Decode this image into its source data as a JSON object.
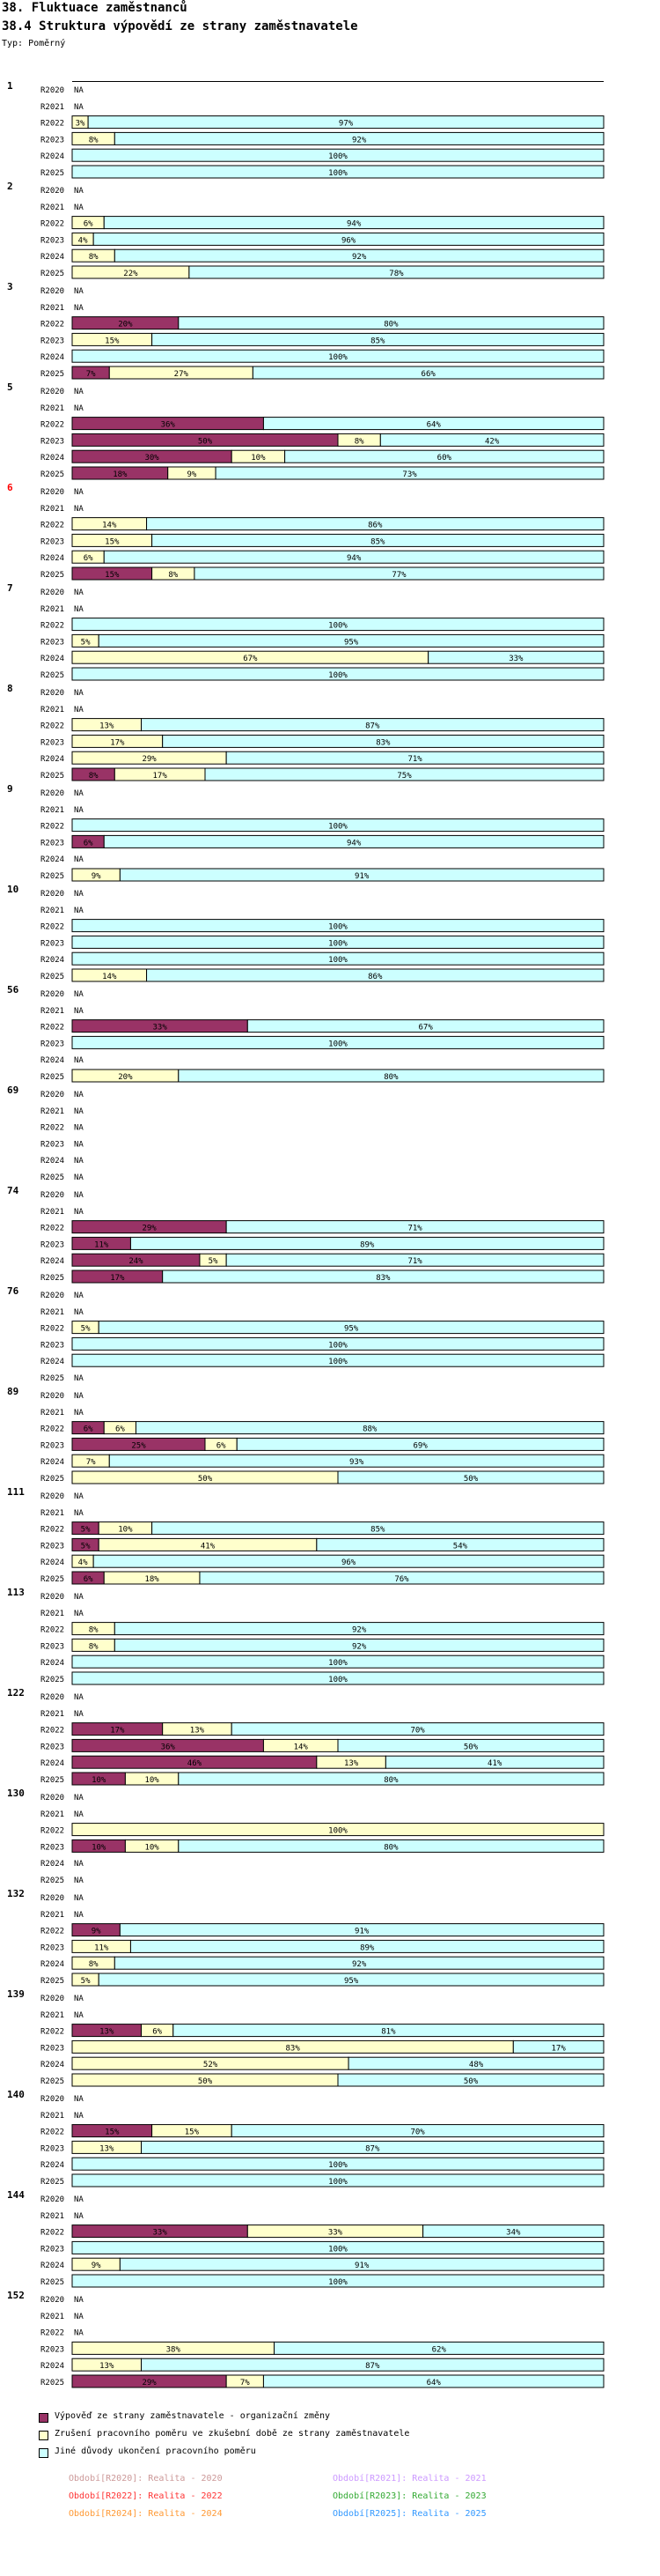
{
  "header": {
    "title": "38. Fluktuace zaměstnanců",
    "subtitle": "38.4 Struktura výpovědí ze strany zaměstnavatele",
    "type_label": "Typ: Poměrný"
  },
  "colors": {
    "employer": "#993366",
    "probation": "#ffffcc",
    "other": "#ccffff",
    "highlight_group": "#ff0000"
  },
  "chart_data": {
    "type": "bar",
    "stacked": true,
    "orientation": "horizontal",
    "unit": "%",
    "xlim": [
      0,
      100
    ],
    "row_labels": [
      "R2020",
      "R2021",
      "R2022",
      "R2023",
      "R2024",
      "R2025"
    ],
    "missing_label": "NA",
    "series": [
      {
        "name": "Výpověď ze strany zaměstnavatele - organizační změny",
        "color": "#993366"
      },
      {
        "name": "Zrušení pracovního poměru ve zkušební době ze strany zaměstnavatele",
        "color": "#ffffcc"
      },
      {
        "name": "Jiné důvody ukončení pracovního poměru",
        "color": "#ccffff"
      }
    ],
    "groups": [
      {
        "label": "1",
        "rows": [
          null,
          null,
          [
            0,
            3,
            97
          ],
          [
            0,
            8,
            92
          ],
          [
            0,
            0,
            100
          ],
          [
            0,
            0,
            100
          ]
        ]
      },
      {
        "label": "2",
        "rows": [
          null,
          null,
          [
            0,
            6,
            94
          ],
          [
            0,
            4,
            96
          ],
          [
            0,
            8,
            92
          ],
          [
            0,
            22,
            78
          ]
        ]
      },
      {
        "label": "3",
        "rows": [
          null,
          null,
          [
            20,
            0,
            80
          ],
          [
            0,
            15,
            85
          ],
          [
            0,
            0,
            100
          ],
          [
            7,
            27,
            66
          ]
        ]
      },
      {
        "label": "5",
        "rows": [
          null,
          null,
          [
            36,
            0,
            64
          ],
          [
            50,
            8,
            42
          ],
          [
            30,
            10,
            60
          ],
          [
            18,
            9,
            73
          ]
        ]
      },
      {
        "label": "6",
        "highlight": true,
        "rows": [
          null,
          null,
          [
            0,
            14,
            86
          ],
          [
            0,
            15,
            85
          ],
          [
            0,
            6,
            94
          ],
          [
            15,
            8,
            77
          ]
        ]
      },
      {
        "label": "7",
        "rows": [
          null,
          null,
          [
            0,
            0,
            100
          ],
          [
            0,
            5,
            95
          ],
          [
            0,
            67,
            33
          ],
          [
            0,
            0,
            100
          ]
        ]
      },
      {
        "label": "8",
        "rows": [
          null,
          null,
          [
            0,
            13,
            87
          ],
          [
            0,
            17,
            83
          ],
          [
            0,
            29,
            71
          ],
          [
            8,
            17,
            75
          ]
        ]
      },
      {
        "label": "9",
        "rows": [
          null,
          null,
          [
            0,
            0,
            100
          ],
          [
            6,
            0,
            94
          ],
          null,
          [
            0,
            9,
            91
          ]
        ]
      },
      {
        "label": "10",
        "rows": [
          null,
          null,
          [
            0,
            0,
            100
          ],
          [
            0,
            0,
            100
          ],
          [
            0,
            0,
            100
          ],
          [
            0,
            14,
            86
          ]
        ]
      },
      {
        "label": "56",
        "rows": [
          null,
          null,
          [
            33,
            0,
            67
          ],
          [
            0,
            0,
            100
          ],
          null,
          [
            0,
            20,
            80
          ]
        ]
      },
      {
        "label": "69",
        "rows": [
          null,
          null,
          null,
          null,
          null,
          null
        ]
      },
      {
        "label": "74",
        "rows": [
          null,
          null,
          [
            29,
            0,
            71
          ],
          [
            11,
            0,
            89
          ],
          [
            24,
            5,
            71
          ],
          [
            17,
            0,
            83
          ]
        ]
      },
      {
        "label": "76",
        "rows": [
          null,
          null,
          [
            0,
            5,
            95
          ],
          [
            0,
            0,
            100
          ],
          [
            0,
            0,
            100
          ],
          null
        ]
      },
      {
        "label": "89",
        "rows": [
          null,
          null,
          [
            6,
            6,
            88
          ],
          [
            25,
            6,
            69
          ],
          [
            0,
            7,
            93
          ],
          [
            0,
            50,
            50
          ]
        ]
      },
      {
        "label": "111",
        "rows": [
          null,
          null,
          [
            5,
            10,
            85
          ],
          [
            5,
            41,
            54
          ],
          [
            0,
            4,
            96
          ],
          [
            6,
            18,
            76
          ]
        ]
      },
      {
        "label": "113",
        "rows": [
          null,
          null,
          [
            0,
            8,
            92
          ],
          [
            0,
            8,
            92
          ],
          [
            0,
            0,
            100
          ],
          [
            0,
            0,
            100
          ]
        ]
      },
      {
        "label": "122",
        "rows": [
          null,
          null,
          [
            17,
            13,
            70
          ],
          [
            36,
            14,
            50
          ],
          [
            46,
            13,
            41
          ],
          [
            10,
            10,
            80
          ]
        ]
      },
      {
        "label": "130",
        "rows": [
          null,
          null,
          [
            0,
            100,
            0
          ],
          [
            10,
            10,
            80
          ],
          null,
          null
        ]
      },
      {
        "label": "132",
        "rows": [
          null,
          null,
          [
            9,
            0,
            91
          ],
          [
            0,
            11,
            89
          ],
          [
            0,
            8,
            92
          ],
          [
            0,
            5,
            95
          ]
        ]
      },
      {
        "label": "139",
        "rows": [
          null,
          null,
          [
            13,
            6,
            81
          ],
          [
            0,
            83,
            17
          ],
          [
            0,
            52,
            48
          ],
          [
            0,
            50,
            50
          ]
        ]
      },
      {
        "label": "140",
        "rows": [
          null,
          null,
          [
            15,
            15,
            70
          ],
          [
            0,
            13,
            87
          ],
          [
            0,
            0,
            100
          ],
          [
            0,
            0,
            100
          ]
        ]
      },
      {
        "label": "144",
        "rows": [
          null,
          null,
          [
            33,
            33,
            34
          ],
          [
            0,
            0,
            100
          ],
          [
            0,
            9,
            91
          ],
          [
            0,
            0,
            100
          ]
        ]
      },
      {
        "label": "152",
        "rows": [
          null,
          null,
          null,
          [
            0,
            38,
            62
          ],
          [
            0,
            13,
            87
          ],
          [
            29,
            7,
            64
          ]
        ]
      }
    ]
  },
  "periods": [
    {
      "text": "Období[R2020]: Realita - 2020",
      "color": "#cc9999"
    },
    {
      "text": "Období[R2021]: Realita - 2021",
      "color": "#cc99ff"
    },
    {
      "text": "Období[R2022]: Realita - 2022",
      "color": "#ff3333"
    },
    {
      "text": "Období[R2023]: Realita - 2023",
      "color": "#33aa33"
    },
    {
      "text": "Období[R2024]: Realita - 2024",
      "color": "#ff9933"
    },
    {
      "text": "Období[R2025]: Realita - 2025",
      "color": "#3399ff"
    }
  ]
}
